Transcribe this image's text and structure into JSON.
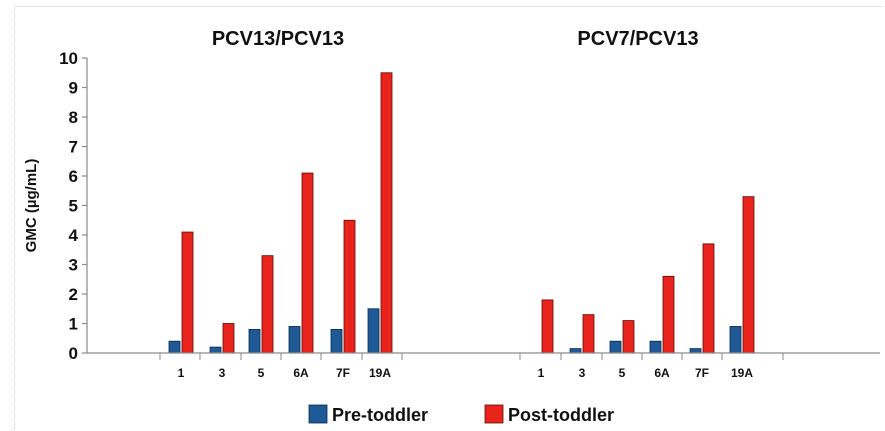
{
  "chart_data": {
    "type": "bar",
    "ylabel": "GMC (µg/mL)",
    "ylim": [
      0,
      10
    ],
    "yticks": [
      0,
      1,
      2,
      3,
      4,
      5,
      6,
      7,
      8,
      9,
      10
    ],
    "grid": false,
    "legend_position": "bottom",
    "colors": {
      "Pre-toddler": "#1f5a96",
      "Post-toddler": "#e8231c"
    },
    "panels": [
      {
        "title": "PCV13/PCV13",
        "categories": [
          "1",
          "3",
          "5",
          "6A",
          "7F",
          "19A"
        ],
        "series": [
          {
            "name": "Pre-toddler",
            "values": [
              0.4,
              0.2,
              0.8,
              0.9,
              0.8,
              1.5
            ]
          },
          {
            "name": "Post-toddler",
            "values": [
              4.1,
              1.0,
              3.3,
              6.1,
              4.5,
              9.5
            ]
          }
        ]
      },
      {
        "title": "PCV7/PCV13",
        "categories": [
          "1",
          "3",
          "5",
          "6A",
          "7F",
          "19A"
        ],
        "series": [
          {
            "name": "Pre-toddler",
            "values": [
              0.0,
              0.15,
              0.4,
              0.4,
              0.15,
              0.9
            ]
          },
          {
            "name": "Post-toddler",
            "values": [
              1.8,
              1.3,
              1.1,
              2.6,
              3.7,
              5.3
            ]
          }
        ]
      }
    ]
  }
}
